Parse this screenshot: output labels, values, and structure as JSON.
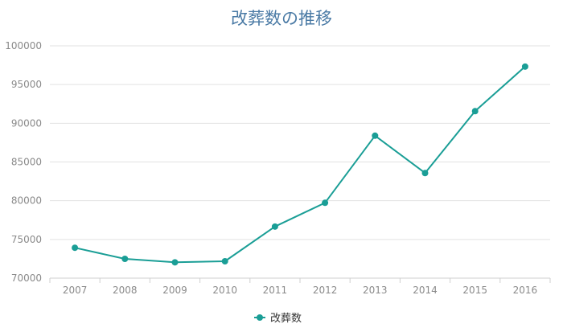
{
  "chart_data": {
    "type": "line",
    "title": "改葬数の推移",
    "xlabel": "",
    "ylabel": "",
    "categories": [
      "2007",
      "2008",
      "2009",
      "2010",
      "2011",
      "2012",
      "2013",
      "2014",
      "2015",
      "2016"
    ],
    "series": [
      {
        "name": "改葬数",
        "values": [
          73924,
          72491,
          72040,
          72180,
          76660,
          79730,
          88397,
          83574,
          91567,
          97317
        ],
        "color": "#1a9e96"
      }
    ],
    "ylim": [
      70000,
      100000
    ],
    "yticks": [
      "70000",
      "75000",
      "80000",
      "85000",
      "90000",
      "95000",
      "100000"
    ],
    "grid": true,
    "legend_position": "bottom-center"
  }
}
